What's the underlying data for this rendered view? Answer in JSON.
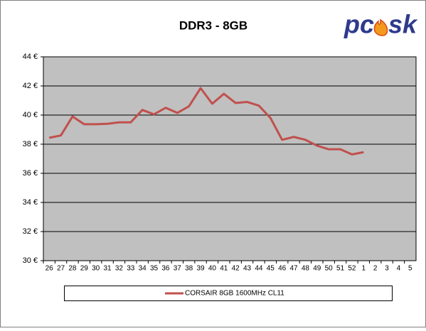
{
  "logo": {
    "left": "pc",
    "right": "sk"
  },
  "chart_data": {
    "type": "line",
    "title": "DDR3 - 8GB",
    "categories": [
      "26",
      "27",
      "28",
      "29",
      "30",
      "31",
      "32",
      "33",
      "34",
      "35",
      "36",
      "37",
      "38",
      "39",
      "40",
      "41",
      "42",
      "43",
      "44",
      "45",
      "46",
      "47",
      "48",
      "49",
      "50",
      "51",
      "52",
      "1",
      "2",
      "3",
      "4",
      "5"
    ],
    "series": [
      {
        "name": "CORSAIR 8GB 1600MHz CL11",
        "color": "#c0504d",
        "values": [
          38.44,
          38.6,
          39.9,
          39.37,
          39.37,
          39.4,
          39.5,
          39.5,
          40.35,
          40.05,
          40.5,
          40.15,
          40.6,
          41.85,
          40.78,
          41.46,
          40.83,
          40.9,
          40.65,
          39.8,
          38.3,
          38.5,
          38.3,
          37.9,
          37.65,
          37.65,
          37.3,
          37.45,
          null,
          null,
          null,
          null
        ]
      }
    ],
    "ylim": [
      30,
      44
    ],
    "yticks": [
      {
        "value": 30,
        "label": "30 €"
      },
      {
        "value": 32,
        "label": "32 €"
      },
      {
        "value": 34,
        "label": "34 €"
      },
      {
        "value": 36,
        "label": "36 €"
      },
      {
        "value": 38,
        "label": "38 €"
      },
      {
        "value": 40,
        "label": "40 €"
      },
      {
        "value": 42,
        "label": "42 €"
      },
      {
        "value": 44,
        "label": "44 €"
      }
    ],
    "grid": true,
    "legend": "bottom",
    "plot_background": "#c0c0c0"
  }
}
